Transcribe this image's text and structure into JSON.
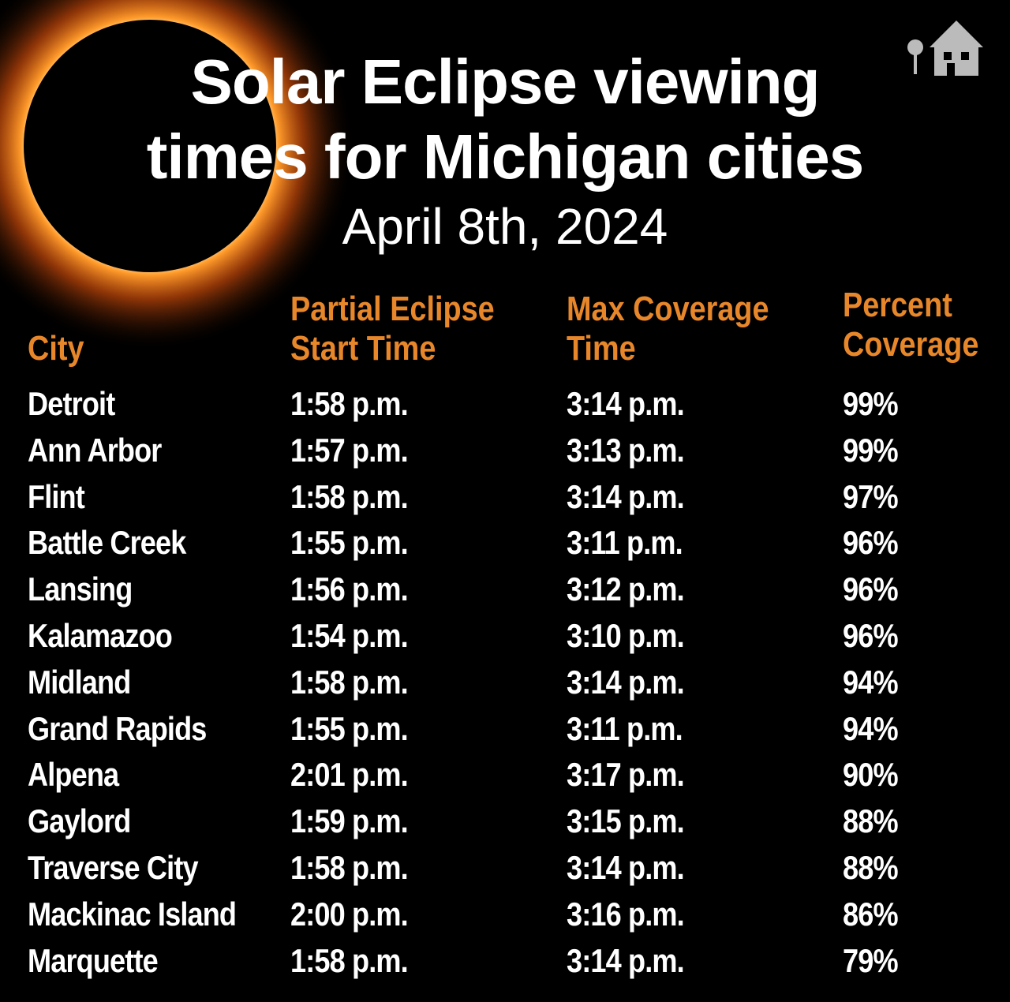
{
  "header": {
    "title_lines": [
      "Solar Eclipse viewing",
      "times for Michigan cities"
    ],
    "date": "April 8th, 2024"
  },
  "table": {
    "columns": [
      [
        "City"
      ],
      [
        "Partial Eclipse",
        "Start Time"
      ],
      [
        "Max Coverage",
        "Time"
      ],
      [
        "Percent",
        "Coverage"
      ]
    ],
    "rows": [
      [
        "Detroit",
        "1:58 p.m.",
        "3:14 p.m.",
        "99%"
      ],
      [
        "Ann Arbor",
        "1:57 p.m.",
        "3:13 p.m.",
        "99%"
      ],
      [
        "Flint",
        "1:58 p.m.",
        "3:14 p.m.",
        "97%"
      ],
      [
        "Battle Creek",
        "1:55 p.m.",
        "3:11 p.m.",
        "96%"
      ],
      [
        "Lansing",
        "1:56 p.m.",
        "3:12 p.m.",
        "96%"
      ],
      [
        "Kalamazoo",
        "1:54 p.m.",
        "3:10 p.m.",
        "96%"
      ],
      [
        "Midland",
        "1:58 p.m.",
        "3:14 p.m.",
        "94%"
      ],
      [
        "Grand Rapids",
        "1:55 p.m.",
        "3:11 p.m.",
        "94%"
      ],
      [
        "Alpena",
        "2:01 p.m.",
        "3:17 p.m.",
        "90%"
      ],
      [
        "Gaylord",
        "1:59 p.m.",
        "3:15 p.m.",
        "88%"
      ],
      [
        "Traverse City",
        "1:58 p.m.",
        "3:14 p.m.",
        "88%"
      ],
      [
        "Mackinac Island",
        "2:00 p.m.",
        "3:16 p.m.",
        "86%"
      ],
      [
        "Marquette",
        "1:58 p.m.",
        "3:14 p.m.",
        "79%"
      ]
    ]
  }
}
